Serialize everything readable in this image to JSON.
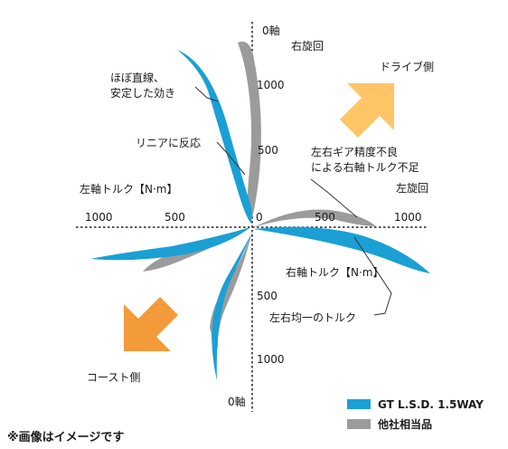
{
  "axes": {
    "top_zero": "0軸",
    "bottom_zero": "0軸",
    "origin": "0",
    "left_axis_title": "左軸トルク【N·m】",
    "right_axis_title": "右軸トルク【N·m】",
    "right_turn": "右旋回",
    "left_turn": "左旋回",
    "ticks": {
      "up_1000": "1000",
      "up_500": "500",
      "down_500": "500",
      "down_1000": "1000",
      "left_1000": "1000",
      "left_500": "500",
      "right_500": "500",
      "right_1000": "1000"
    }
  },
  "annotations": {
    "stable_line1": "ほぼ直線、",
    "stable_line2": "安定した効き",
    "linear": "リニアに反応",
    "imprecise_line1": "左右ギア精度不良",
    "imprecise_line2": "による右軸トルク不足",
    "even": "左右均一のトルク"
  },
  "arrows": {
    "drive_label": "ドライブ側",
    "coast_label": "コースト側",
    "drive_color": "#ffc566",
    "coast_color": "#f39a3a"
  },
  "legend": {
    "gt_label": "GT L.S.D. 1.5WAY",
    "gt_color": "#1aa0d4",
    "other_label": "他社相当品",
    "other_color": "#9b9b9b"
  },
  "footnote": "※画像はイメージです"
}
